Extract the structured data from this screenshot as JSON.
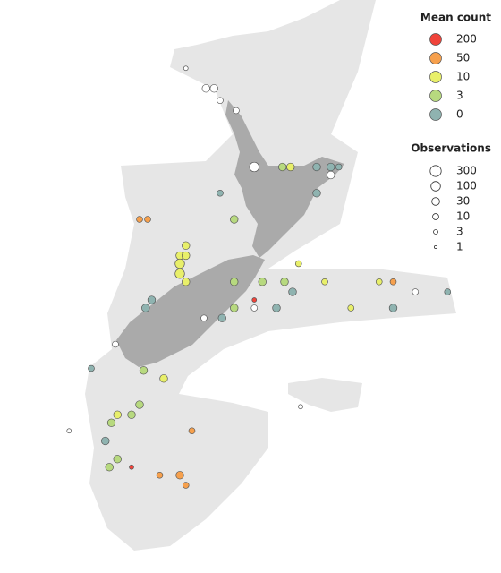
{
  "legend_count": {
    "title": "Mean count",
    "items": [
      {
        "label": "200",
        "value": 200,
        "color": "#f0433a"
      },
      {
        "label": "50",
        "value": 50,
        "color": "#f6a04d"
      },
      {
        "label": "10",
        "value": 10,
        "color": "#e8ef6a"
      },
      {
        "label": "3",
        "value": 3,
        "color": "#b7d97f"
      },
      {
        "label": "0",
        "value": 0,
        "color": "#8fb3b0"
      }
    ]
  },
  "legend_obs": {
    "title": "Observations",
    "items": [
      {
        "label": "300",
        "value": 300
      },
      {
        "label": "100",
        "value": 100
      },
      {
        "label": "30",
        "value": 30
      },
      {
        "label": "10",
        "value": 10
      },
      {
        "label": "3",
        "value": 3
      },
      {
        "label": "1",
        "value": 1
      }
    ]
  },
  "points": [
    {
      "lon": 170.6,
      "lat": -32.9,
      "mean_count": null,
      "observations": 3
    },
    {
      "lon": 171.6,
      "lat": -33.9,
      "mean_count": null,
      "observations": 30
    },
    {
      "lon": 172.0,
      "lat": -33.9,
      "mean_count": null,
      "observations": 30
    },
    {
      "lon": 172.3,
      "lat": -34.5,
      "mean_count": null,
      "observations": 10
    },
    {
      "lon": 173.1,
      "lat": -35.0,
      "mean_count": null,
      "observations": 10
    },
    {
      "lon": 174.0,
      "lat": -37.8,
      "mean_count": null,
      "observations": 100
    },
    {
      "lon": 175.4,
      "lat": -37.8,
      "mean_count": 3,
      "observations": 30
    },
    {
      "lon": 175.8,
      "lat": -37.8,
      "mean_count": 10,
      "observations": 30
    },
    {
      "lon": 177.1,
      "lat": -37.8,
      "mean_count": 0,
      "observations": 30
    },
    {
      "lon": 177.8,
      "lat": -37.8,
      "mean_count": 0,
      "observations": 30
    },
    {
      "lon": 178.2,
      "lat": -37.8,
      "mean_count": 0,
      "observations": 10
    },
    {
      "lon": 177.8,
      "lat": -38.2,
      "mean_count": null,
      "observations": 30
    },
    {
      "lon": 177.1,
      "lat": -39.1,
      "mean_count": 0,
      "observations": 30
    },
    {
      "lon": 172.3,
      "lat": -39.1,
      "mean_count": 0,
      "observations": 10
    },
    {
      "lon": 173.0,
      "lat": -40.4,
      "mean_count": 3,
      "observations": 30
    },
    {
      "lon": 168.3,
      "lat": -40.4,
      "mean_count": 50,
      "observations": 10
    },
    {
      "lon": 168.7,
      "lat": -40.4,
      "mean_count": 50,
      "observations": 10
    },
    {
      "lon": 170.6,
      "lat": -41.7,
      "mean_count": 10,
      "observations": 30
    },
    {
      "lon": 170.3,
      "lat": -42.2,
      "mean_count": 10,
      "observations": 30
    },
    {
      "lon": 170.6,
      "lat": -42.2,
      "mean_count": 10,
      "observations": 30
    },
    {
      "lon": 170.3,
      "lat": -42.6,
      "mean_count": 10,
      "observations": 100
    },
    {
      "lon": 170.3,
      "lat": -43.1,
      "mean_count": 10,
      "observations": 100
    },
    {
      "lon": 170.6,
      "lat": -43.5,
      "mean_count": 10,
      "observations": 30
    },
    {
      "lon": 168.9,
      "lat": -44.4,
      "mean_count": 0,
      "observations": 30
    },
    {
      "lon": 168.6,
      "lat": -44.8,
      "mean_count": 0,
      "observations": 30
    },
    {
      "lon": 173.0,
      "lat": -43.5,
      "mean_count": 3,
      "observations": 30
    },
    {
      "lon": 174.4,
      "lat": -43.5,
      "mean_count": 3,
      "observations": 30
    },
    {
      "lon": 175.5,
      "lat": -43.5,
      "mean_count": 3,
      "observations": 30
    },
    {
      "lon": 175.9,
      "lat": -44.0,
      "mean_count": 0,
      "observations": 30
    },
    {
      "lon": 177.5,
      "lat": -43.5,
      "mean_count": 10,
      "observations": 10
    },
    {
      "lon": 180.2,
      "lat": -43.5,
      "mean_count": 10,
      "observations": 10
    },
    {
      "lon": 180.9,
      "lat": -43.5,
      "mean_count": 50,
      "observations": 10
    },
    {
      "lon": 182.0,
      "lat": -44.0,
      "mean_count": null,
      "observations": 10
    },
    {
      "lon": 183.6,
      "lat": -44.0,
      "mean_count": 0,
      "observations": 10
    },
    {
      "lon": 180.9,
      "lat": -44.8,
      "mean_count": 0,
      "observations": 30
    },
    {
      "lon": 175.1,
      "lat": -44.8,
      "mean_count": 0,
      "observations": 30
    },
    {
      "lon": 173.0,
      "lat": -44.8,
      "mean_count": 3,
      "observations": 30
    },
    {
      "lon": 172.4,
      "lat": -45.3,
      "mean_count": 0,
      "observations": 30
    },
    {
      "lon": 167.1,
      "lat": -46.6,
      "mean_count": null,
      "observations": 10
    },
    {
      "lon": 168.5,
      "lat": -47.9,
      "mean_count": 3,
      "observations": 30
    },
    {
      "lon": 169.5,
      "lat": -48.3,
      "mean_count": 10,
      "observations": 30
    },
    {
      "lon": 168.3,
      "lat": -49.6,
      "mean_count": 3,
      "observations": 30
    },
    {
      "lon": 167.2,
      "lat": -50.1,
      "mean_count": 10,
      "observations": 30
    },
    {
      "lon": 167.9,
      "lat": -50.1,
      "mean_count": 3,
      "observations": 30
    },
    {
      "lon": 166.9,
      "lat": -50.5,
      "mean_count": 3,
      "observations": 30
    },
    {
      "lon": 166.6,
      "lat": -51.4,
      "mean_count": 0,
      "observations": 30
    },
    {
      "lon": 167.2,
      "lat": -52.3,
      "mean_count": 3,
      "observations": 30
    },
    {
      "lon": 166.8,
      "lat": -52.7,
      "mean_count": 3,
      "observations": 30
    },
    {
      "lon": 170.3,
      "lat": -53.1,
      "mean_count": 50,
      "observations": 30
    },
    {
      "lon": 170.6,
      "lat": -53.6,
      "mean_count": 50,
      "observations": 10
    },
    {
      "lon": 170.9,
      "lat": -50.9,
      "mean_count": 50,
      "observations": 10
    },
    {
      "lon": 169.3,
      "lat": -53.1,
      "mean_count": 50,
      "observations": 10
    },
    {
      "lon": 167.9,
      "lat": -52.7,
      "mean_count": 200,
      "observations": 3
    },
    {
      "lon": 174.0,
      "lat": -44.4,
      "mean_count": 200,
      "observations": 3
    },
    {
      "lon": 174.0,
      "lat": -44.8,
      "mean_count": null,
      "observations": 10
    },
    {
      "lon": 176.2,
      "lat": -42.6,
      "mean_count": 10,
      "observations": 10
    },
    {
      "lon": 176.3,
      "lat": -49.7,
      "mean_count": null,
      "observations": 3
    },
    {
      "lon": 164.8,
      "lat": -50.9,
      "mean_count": null,
      "observations": 3
    },
    {
      "lon": 165.9,
      "lat": -47.8,
      "mean_count": 0,
      "observations": 10
    },
    {
      "lon": 171.5,
      "lat": -45.3,
      "mean_count": null,
      "observations": 10
    },
    {
      "lon": 178.8,
      "lat": -44.8,
      "mean_count": 10,
      "observations": 10
    }
  ]
}
